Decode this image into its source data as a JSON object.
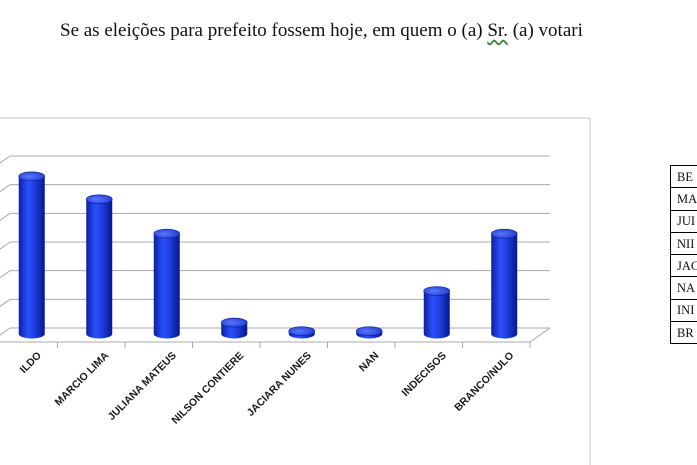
{
  "question": {
    "before": "Se as eleições para prefeito fossem hoje, em quem o (a) ",
    "sr": "Sr.",
    "after": " (a) votari"
  },
  "chart_data": {
    "type": "bar",
    "title": "",
    "categories": [
      "ILDO",
      "MARCIO LIMA",
      "JULIANA MATEUS",
      "NILSON CONTIERE",
      "JACIARA NUNES",
      "NAN",
      "INDECISOS",
      "BRANCO/NULO"
    ],
    "values": [
      5.5,
      4.7,
      3.5,
      0.4,
      0.1,
      0.1,
      1.5,
      3.5
    ],
    "ylim": [
      0,
      6
    ],
    "grid": true,
    "bar_color": "#1f3fd6",
    "legend_table": [
      "BE",
      "MA",
      "JUI",
      "NII",
      "JAC",
      "NA",
      "INI",
      "BR"
    ]
  }
}
